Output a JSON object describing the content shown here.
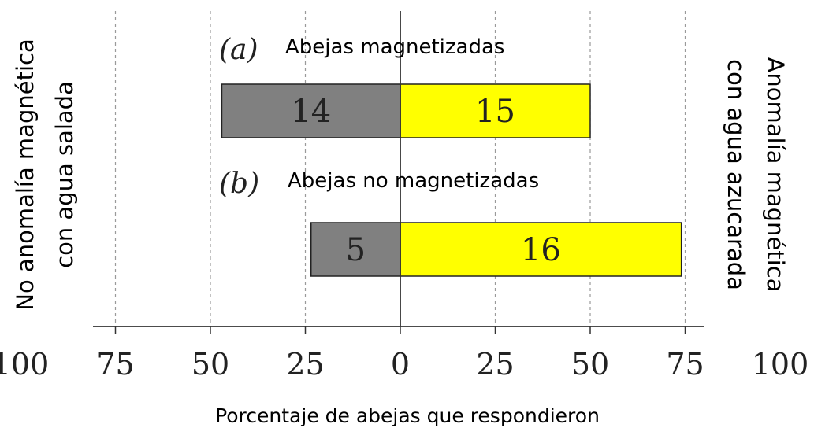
{
  "chart_data": {
    "type": "bar",
    "orientation": "horizontal-diverging",
    "xlabel": "Porcentaje de abejas que respondieron",
    "left_label_lines": [
      "No anomalía magnética",
      "con agua salada"
    ],
    "right_label_lines": [
      "Anomalía magnética",
      "con agua azucarada"
    ],
    "x_tick_values": [
      -100,
      -75,
      -50,
      -25,
      0,
      25,
      50,
      75,
      100
    ],
    "x_tick_labels": [
      "100",
      "75",
      "50",
      "25",
      "0",
      "25",
      "50",
      "75",
      "100"
    ],
    "grid": true,
    "colors": {
      "left": "#808080",
      "right": "#ffff00",
      "grid": "#9a9a9a"
    },
    "panels": [
      {
        "letter": "(a)",
        "title": "Abejas magnetizadas",
        "left_value": 47,
        "left_label": "14",
        "right_value": 50,
        "right_label": "15"
      },
      {
        "letter": "(b)",
        "title": "Abejas no magnetizadas",
        "left_value": 23.5,
        "left_label": "5",
        "right_value": 74,
        "right_label": "16"
      }
    ]
  }
}
